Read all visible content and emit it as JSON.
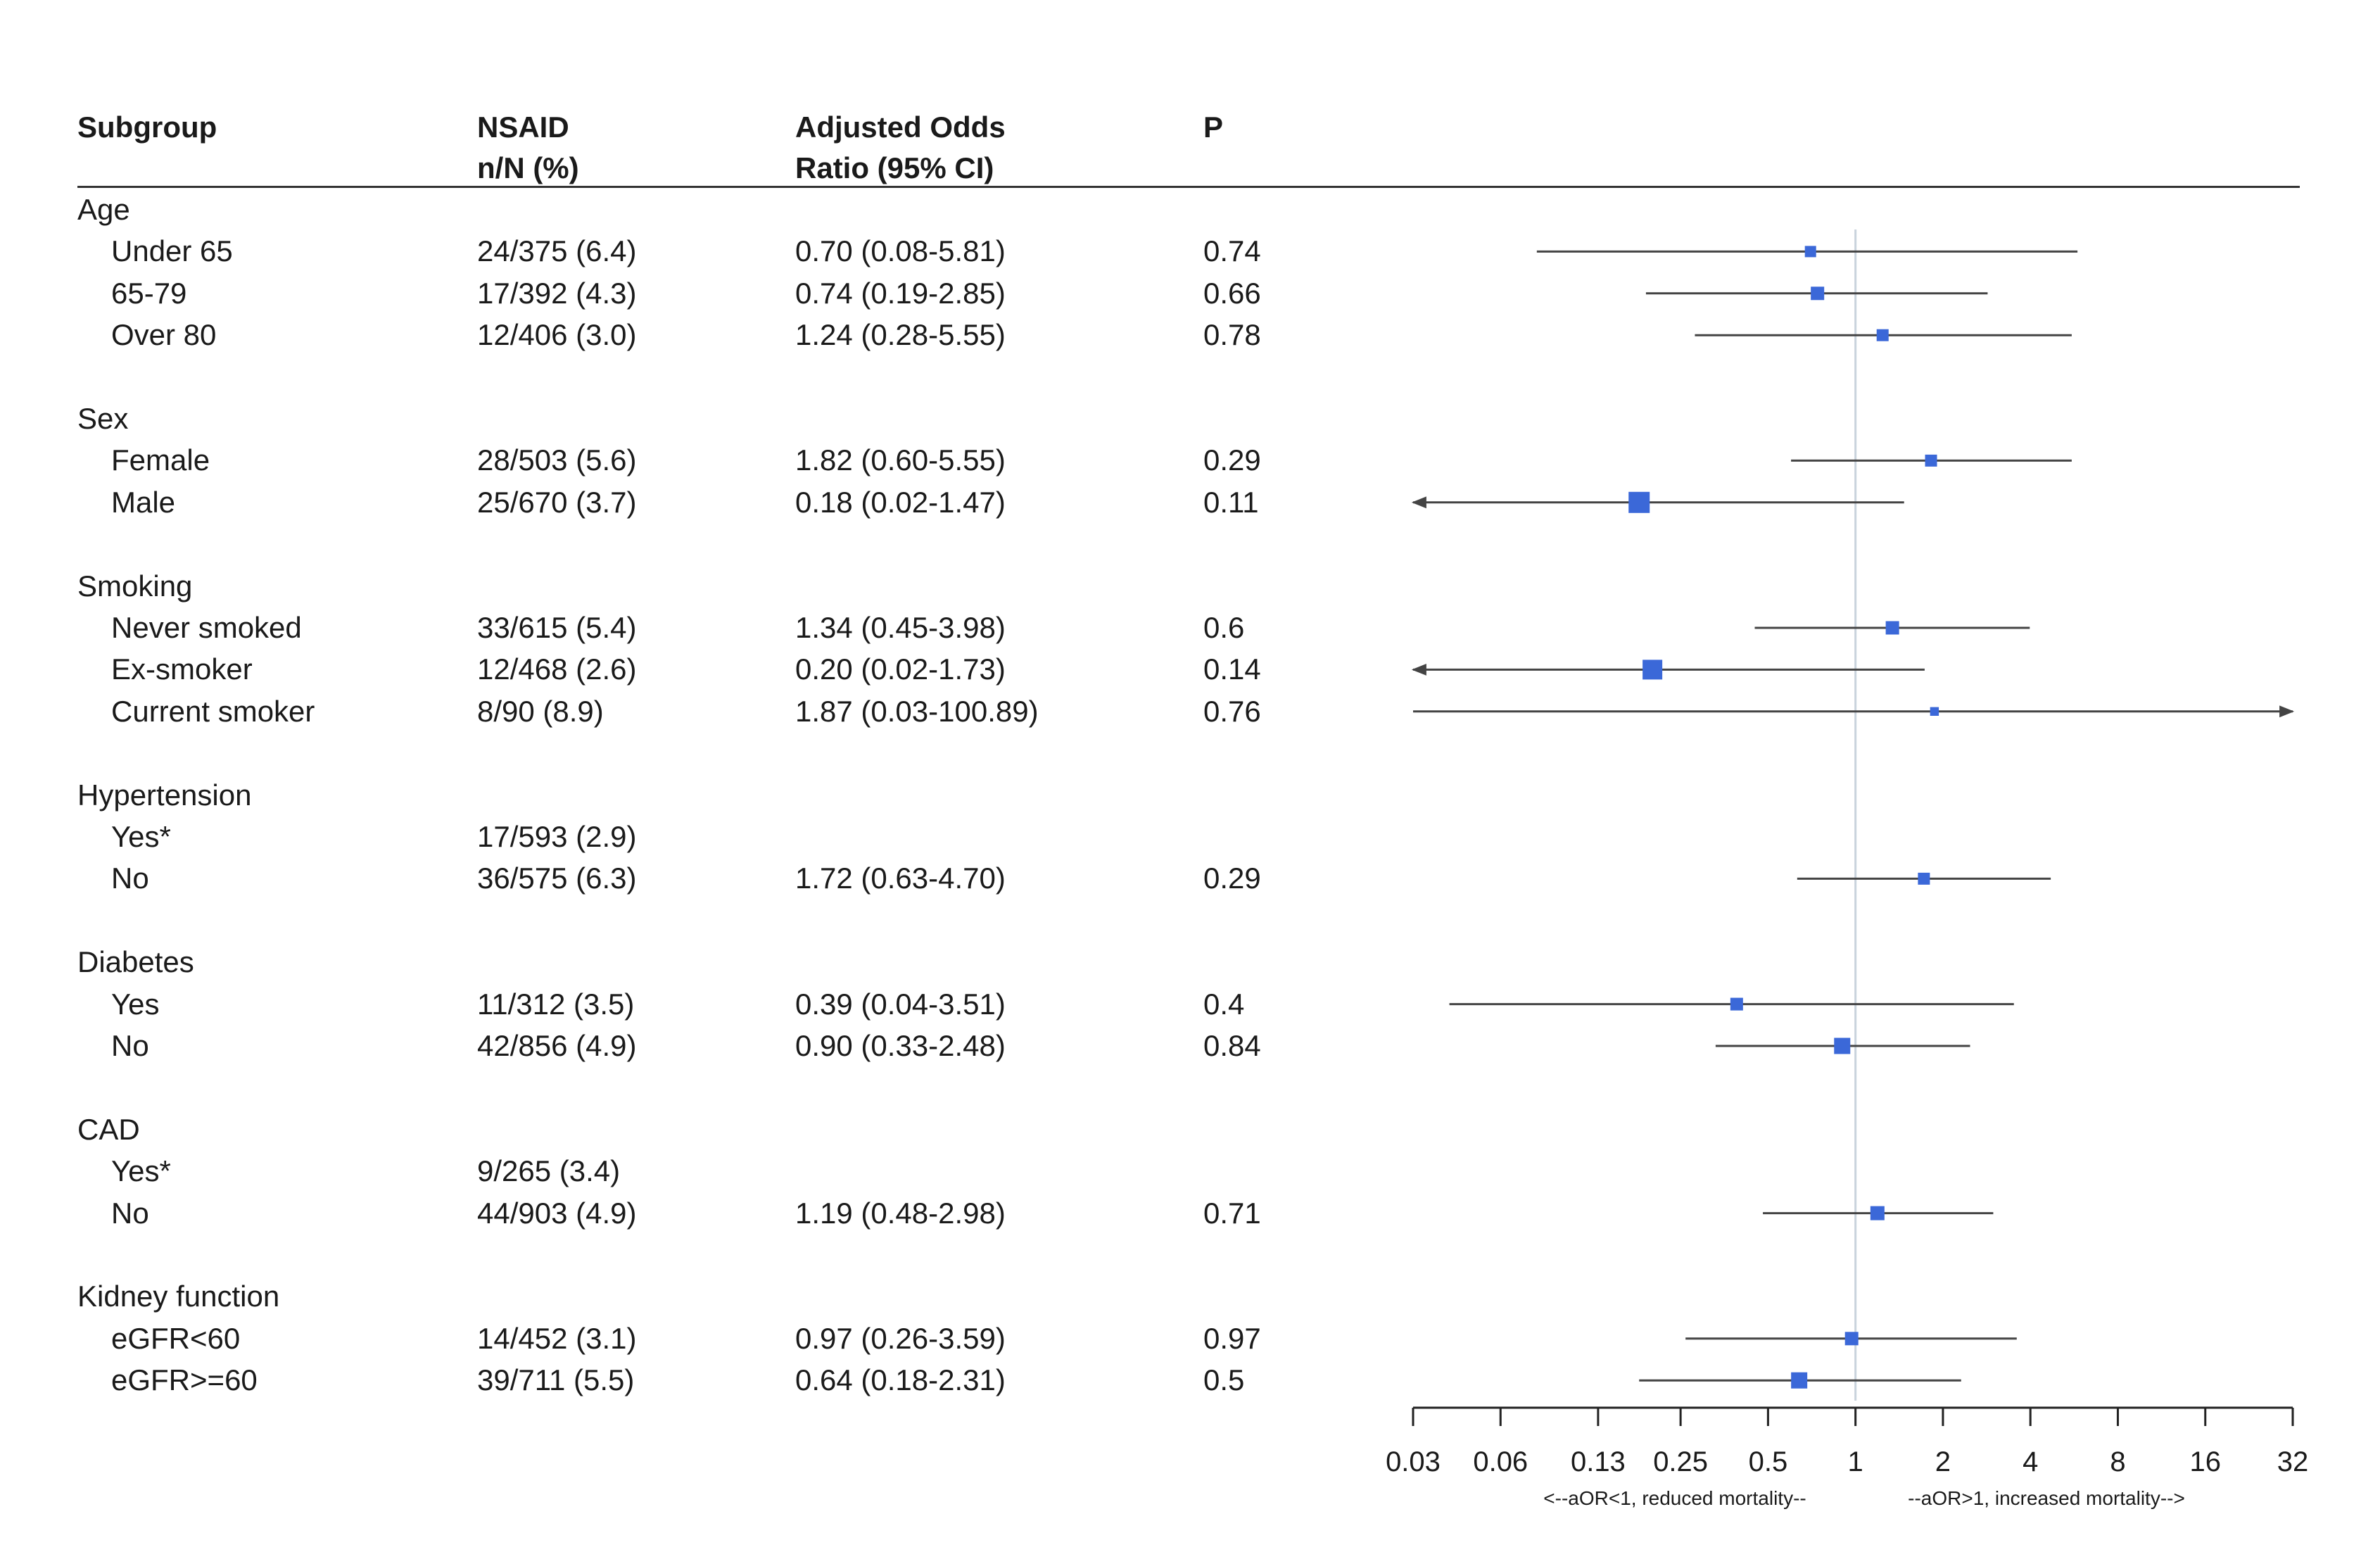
{
  "headers": {
    "subgroup": "Subgroup",
    "nsaid_line1": "NSAID",
    "nsaid_line2": "n/N (%)",
    "aor_line1": "Adjusted Odds",
    "aor_line2": "Ratio (95% CI)",
    "p": "P"
  },
  "rows": [
    {
      "type": "group",
      "label": "Age"
    },
    {
      "type": "sub",
      "label": "Under 65",
      "n": "24/375 (6.4)",
      "aor": "0.70 (0.08-5.81)",
      "p": "0.74"
    },
    {
      "type": "sub",
      "label": "65-79",
      "n": "17/392 (4.3)",
      "aor": "0.74 (0.19-2.85)",
      "p": "0.66"
    },
    {
      "type": "sub",
      "label": "Over 80",
      "n": "12/406 (3.0)",
      "aor": "1.24 (0.28-5.55)",
      "p": "0.78"
    },
    {
      "type": "blank"
    },
    {
      "type": "group",
      "label": "Sex"
    },
    {
      "type": "sub",
      "label": "Female",
      "n": "28/503 (5.6)",
      "aor": "1.82 (0.60-5.55)",
      "p": "0.29"
    },
    {
      "type": "sub",
      "label": "Male",
      "n": "25/670 (3.7)",
      "aor": "0.18 (0.02-1.47)",
      "p": "0.11"
    },
    {
      "type": "blank"
    },
    {
      "type": "group",
      "label": "Smoking"
    },
    {
      "type": "sub",
      "label": "Never smoked",
      "n": "33/615 (5.4)",
      "aor": "1.34 (0.45-3.98)",
      "p": "0.6"
    },
    {
      "type": "sub",
      "label": "Ex-smoker",
      "n": "12/468 (2.6)",
      "aor": "0.20 (0.02-1.73)",
      "p": "0.14"
    },
    {
      "type": "sub",
      "label": "Current smoker",
      "n": "8/90 (8.9)",
      "aor": "1.87 (0.03-100.89)",
      "p": "0.76"
    },
    {
      "type": "blank"
    },
    {
      "type": "group",
      "label": "Hypertension"
    },
    {
      "type": "sub",
      "label": "Yes*",
      "n": "17/593 (2.9)",
      "aor": "",
      "p": ""
    },
    {
      "type": "sub",
      "label": "No",
      "n": "36/575 (6.3)",
      "aor": "1.72 (0.63-4.70)",
      "p": "0.29"
    },
    {
      "type": "blank"
    },
    {
      "type": "group",
      "label": "Diabetes"
    },
    {
      "type": "sub",
      "label": "Yes",
      "n": "11/312 (3.5)",
      "aor": "0.39 (0.04-3.51)",
      "p": "0.4"
    },
    {
      "type": "sub",
      "label": "No",
      "n": "42/856 (4.9)",
      "aor": "0.90 (0.33-2.48)",
      "p": "0.84"
    },
    {
      "type": "blank"
    },
    {
      "type": "group",
      "label": "CAD"
    },
    {
      "type": "sub",
      "label": "Yes*",
      "n": "9/265 (3.4)",
      "aor": "",
      "p": ""
    },
    {
      "type": "sub",
      "label": "No",
      "n": "44/903 (4.9)",
      "aor": "1.19 (0.48-2.98)",
      "p": "0.71"
    },
    {
      "type": "blank"
    },
    {
      "type": "group",
      "label": "Kidney function"
    },
    {
      "type": "sub",
      "label": "eGFR<60",
      "n": "14/452 (3.1)",
      "aor": "0.97 (0.26-3.59)",
      "p": "0.97"
    },
    {
      "type": "sub",
      "label": "eGFR>=60",
      "n": "39/711 (5.5)",
      "aor": "0.64 (0.18-2.31)",
      "p": "0.5"
    }
  ],
  "chart_data": {
    "type": "forest",
    "scale": "log2",
    "xlim": [
      0.03,
      32
    ],
    "reference_line": 1,
    "ticks": [
      0.03,
      0.06,
      0.13,
      0.25,
      0.5,
      1,
      2,
      4,
      8,
      16,
      32
    ],
    "tick_labels": [
      "0.03",
      "0.06",
      "0.13",
      "0.25",
      "0.5",
      "1",
      "2",
      "4",
      "8",
      "16",
      "32"
    ],
    "direction_left": "<--aOR<1, reduced mortality--",
    "direction_right": "--aOR>1, increased mortality-->",
    "colors": {
      "marker": "#3b68d8",
      "line": "#444444",
      "reference": "#c9d3dc"
    },
    "points": [
      {
        "row": 1,
        "est": 0.7,
        "lo": 0.08,
        "hi": 5.81,
        "weight": 0.3
      },
      {
        "row": 2,
        "est": 0.74,
        "lo": 0.19,
        "hi": 2.85,
        "weight": 0.45
      },
      {
        "row": 3,
        "est": 1.24,
        "lo": 0.28,
        "hi": 5.55,
        "weight": 0.35
      },
      {
        "row": 6,
        "est": 1.82,
        "lo": 0.6,
        "hi": 5.55,
        "weight": 0.35
      },
      {
        "row": 7,
        "est": 0.18,
        "lo": 0.02,
        "hi": 1.47,
        "weight": 1.0
      },
      {
        "row": 10,
        "est": 1.34,
        "lo": 0.45,
        "hi": 3.98,
        "weight": 0.45
      },
      {
        "row": 11,
        "est": 0.2,
        "lo": 0.02,
        "hi": 1.73,
        "weight": 0.9
      },
      {
        "row": 12,
        "est": 1.87,
        "lo": 0.03,
        "hi": 100.89,
        "weight": 0.12
      },
      {
        "row": 16,
        "est": 1.72,
        "lo": 0.63,
        "hi": 4.7,
        "weight": 0.35
      },
      {
        "row": 19,
        "est": 0.39,
        "lo": 0.04,
        "hi": 3.51,
        "weight": 0.4
      },
      {
        "row": 20,
        "est": 0.9,
        "lo": 0.33,
        "hi": 2.48,
        "weight": 0.65
      },
      {
        "row": 24,
        "est": 1.19,
        "lo": 0.48,
        "hi": 2.98,
        "weight": 0.5
      },
      {
        "row": 27,
        "est": 0.97,
        "lo": 0.26,
        "hi": 3.59,
        "weight": 0.45
      },
      {
        "row": 28,
        "est": 0.64,
        "lo": 0.18,
        "hi": 2.31,
        "weight": 0.65
      }
    ]
  }
}
